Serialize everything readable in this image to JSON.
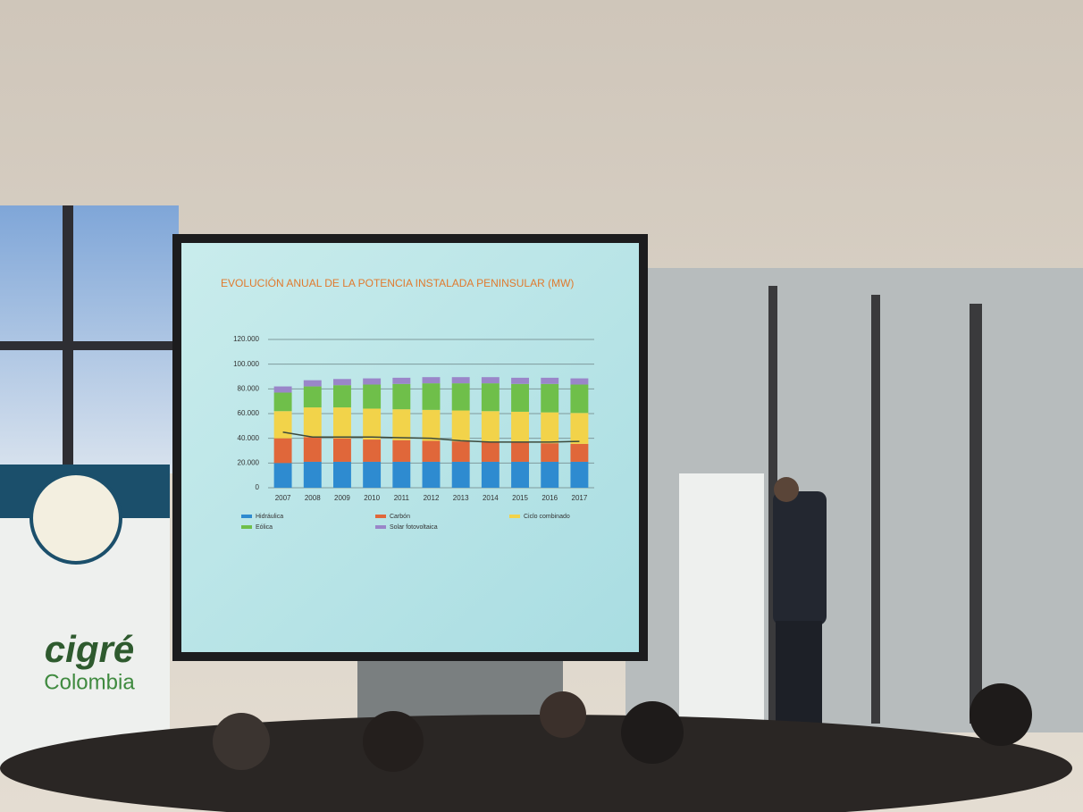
{
  "chart_data": {
    "type": "bar",
    "stacked": true,
    "title": "EVOLUCIÓN ANUAL DE LA POTENCIA INSTALADA PENINSULAR (MW)",
    "categories": [
      "2007",
      "2008",
      "2009",
      "2010",
      "2011",
      "2012",
      "2013",
      "2014",
      "2015",
      "2016",
      "2017"
    ],
    "series": [
      {
        "name": "Hidráulica",
        "color": "#2e8bd0",
        "values": [
          20000,
          21000,
          21000,
          21000,
          21000,
          21000,
          21000,
          21000,
          21000,
          21000,
          21000
        ]
      },
      {
        "name": "Carbón",
        "color": "#e0673a",
        "values": [
          20000,
          20000,
          19000,
          18000,
          17500,
          17000,
          16500,
          16000,
          15500,
          15000,
          14500
        ]
      },
      {
        "name": "Ciclo combinado",
        "color": "#f2d34a",
        "values": [
          22000,
          24000,
          25000,
          25000,
          25000,
          25000,
          25000,
          25000,
          25000,
          25000,
          25000
        ]
      },
      {
        "name": "Eólica",
        "color": "#6fbf4a",
        "values": [
          15000,
          17000,
          18000,
          19500,
          20500,
          21500,
          22000,
          22500,
          22500,
          23000,
          23000
        ]
      },
      {
        "name": "Solar fotovoltaica",
        "color": "#9a86c9",
        "values": [
          5000,
          5000,
          5000,
          5000,
          5000,
          5000,
          5000,
          5000,
          5000,
          5000,
          5000
        ]
      },
      {
        "type": "line",
        "color": "#3c4a3c",
        "values": [
          45000,
          41000,
          41000,
          41000,
          40500,
          40000,
          38000,
          37000,
          37000,
          37000,
          37500
        ]
      }
    ],
    "ylim": [
      0,
      120000
    ],
    "yticks": [
      0,
      {
        "value": 20000,
        "label": "20.000"
      },
      {
        "value": 40000,
        "label": "40.000"
      },
      {
        "value": 60000,
        "label": "60.000"
      },
      {
        "value": 80000,
        "label": "80.000"
      },
      {
        "value": 100000,
        "label": "100.000"
      },
      {
        "value": 120000,
        "label": "120.000"
      }
    ],
    "grid": true
  },
  "scene": {
    "banner_logo": "cigré",
    "banner_sub": "Colombia"
  }
}
